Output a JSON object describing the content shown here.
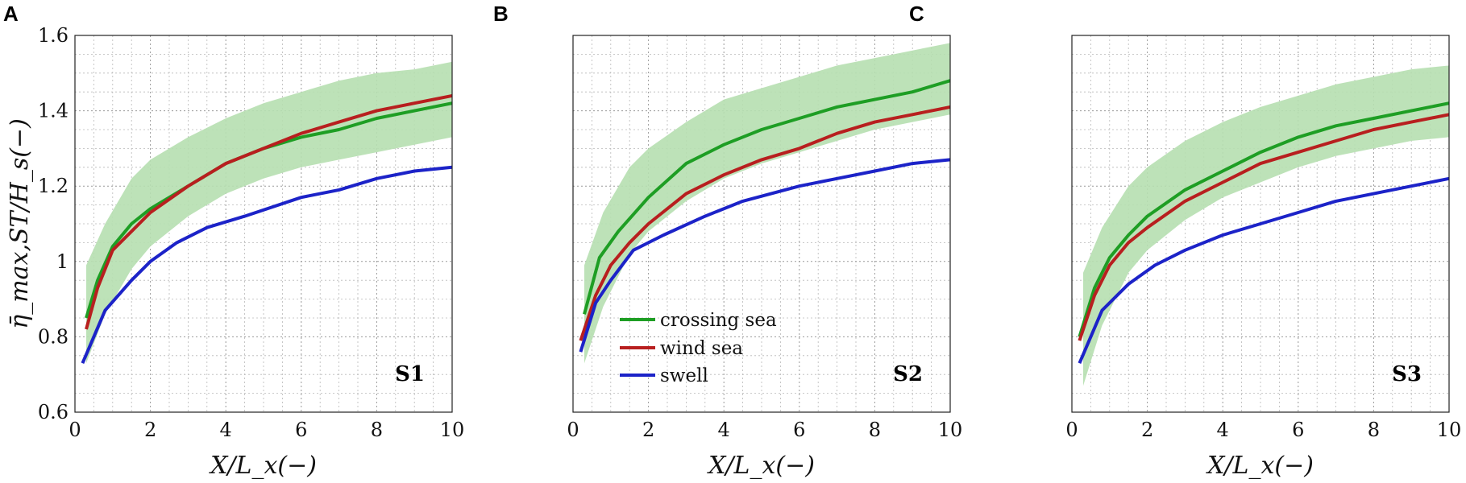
{
  "chart_data": [
    {
      "type": "line",
      "panel_letter": "A",
      "tag": "S1",
      "xlabel": "X/L_x(−)",
      "ylabel": "η̄_max,ST/H_s(−)",
      "xlim": [
        0,
        10
      ],
      "ylim": [
        0.6,
        1.6
      ],
      "xticks": [
        "0",
        "2",
        "4",
        "6",
        "8",
        "10"
      ],
      "yticks": [
        "0.6",
        "0.8",
        "1",
        "1.2",
        "1.4",
        "1.6"
      ],
      "band": {
        "name": "crossing sea range",
        "color": "#b6dfb0",
        "x": [
          0.3,
          0.8,
          1.5,
          2.0,
          3.0,
          4.0,
          5.0,
          6.0,
          7.0,
          8.0,
          9.0,
          10.0
        ],
        "lower": [
          0.73,
          0.86,
          0.98,
          1.04,
          1.12,
          1.18,
          1.22,
          1.25,
          1.27,
          1.29,
          1.31,
          1.33
        ],
        "upper": [
          0.99,
          1.1,
          1.22,
          1.27,
          1.33,
          1.38,
          1.42,
          1.45,
          1.48,
          1.5,
          1.51,
          1.53
        ]
      },
      "series": [
        {
          "name": "crossing sea",
          "color": "#1e9e24",
          "x": [
            0.3,
            0.6,
            1.0,
            1.5,
            2.0,
            3.0,
            4.0,
            5.0,
            6.0,
            7.0,
            8.0,
            9.0,
            10.0
          ],
          "values": [
            0.85,
            0.95,
            1.04,
            1.1,
            1.14,
            1.2,
            1.26,
            1.3,
            1.33,
            1.35,
            1.38,
            1.4,
            1.42
          ]
        },
        {
          "name": "wind sea",
          "color": "#b81f1f",
          "x": [
            0.3,
            0.6,
            1.0,
            1.5,
            2.0,
            3.0,
            4.0,
            5.0,
            6.0,
            7.0,
            8.0,
            9.0,
            10.0
          ],
          "values": [
            0.82,
            0.93,
            1.03,
            1.08,
            1.13,
            1.2,
            1.26,
            1.3,
            1.34,
            1.37,
            1.4,
            1.42,
            1.44
          ]
        },
        {
          "name": "swell",
          "color": "#1c23c8",
          "x": [
            0.2,
            0.8,
            1.5,
            2.0,
            2.7,
            3.5,
            4.5,
            6.0,
            7.0,
            8.0,
            9.0,
            10.0
          ],
          "values": [
            0.73,
            0.87,
            0.95,
            1.0,
            1.05,
            1.09,
            1.12,
            1.17,
            1.19,
            1.22,
            1.24,
            1.25
          ]
        }
      ]
    },
    {
      "type": "line",
      "panel_letter": "B",
      "tag": "S2",
      "xlabel": "X/L_x(−)",
      "xlim": [
        0,
        10
      ],
      "ylim": [
        0.6,
        1.6
      ],
      "xticks": [
        "0",
        "2",
        "4",
        "6",
        "8",
        "10"
      ],
      "legend": {
        "position": "center-left",
        "entries": [
          "crossing sea",
          "wind sea",
          "swell"
        ]
      },
      "band": {
        "name": "crossing sea range",
        "color": "#b6dfb0",
        "x": [
          0.3,
          0.8,
          1.5,
          2.0,
          3.0,
          4.0,
          5.0,
          6.0,
          7.0,
          8.0,
          9.0,
          10.0
        ],
        "lower": [
          0.73,
          0.88,
          1.02,
          1.08,
          1.16,
          1.22,
          1.26,
          1.29,
          1.32,
          1.35,
          1.37,
          1.39
        ],
        "upper": [
          0.99,
          1.13,
          1.25,
          1.3,
          1.37,
          1.43,
          1.46,
          1.49,
          1.52,
          1.54,
          1.56,
          1.58
        ]
      },
      "series": [
        {
          "name": "crossing sea",
          "color": "#1e9e24",
          "x": [
            0.3,
            0.7,
            1.2,
            2.0,
            3.0,
            4.0,
            5.0,
            6.0,
            7.0,
            8.0,
            9.0,
            10.0
          ],
          "values": [
            0.86,
            1.01,
            1.08,
            1.17,
            1.26,
            1.31,
            1.35,
            1.38,
            1.41,
            1.43,
            1.45,
            1.48
          ]
        },
        {
          "name": "wind sea",
          "color": "#b81f1f",
          "x": [
            0.2,
            0.6,
            1.0,
            1.5,
            2.0,
            3.0,
            4.0,
            5.0,
            6.0,
            7.0,
            8.0,
            9.0,
            10.0
          ],
          "values": [
            0.79,
            0.91,
            0.99,
            1.05,
            1.1,
            1.18,
            1.23,
            1.27,
            1.3,
            1.34,
            1.37,
            1.39,
            1.41
          ]
        },
        {
          "name": "swell",
          "color": "#1c23c8",
          "x": [
            0.2,
            0.6,
            1.0,
            1.6,
            2.4,
            3.5,
            4.5,
            6.0,
            7.0,
            8.0,
            9.0,
            10.0
          ],
          "values": [
            0.76,
            0.89,
            0.95,
            1.03,
            1.07,
            1.12,
            1.16,
            1.2,
            1.22,
            1.24,
            1.26,
            1.27
          ]
        }
      ]
    },
    {
      "type": "line",
      "panel_letter": "C",
      "tag": "S3",
      "xlabel": "X/L_x(−)",
      "xlim": [
        0,
        10
      ],
      "ylim": [
        0.6,
        1.6
      ],
      "xticks": [
        "0",
        "2",
        "4",
        "6",
        "8",
        "10"
      ],
      "band": {
        "name": "crossing sea range",
        "color": "#b6dfb0",
        "x": [
          0.3,
          0.8,
          1.5,
          2.0,
          3.0,
          4.0,
          5.0,
          6.0,
          7.0,
          8.0,
          9.0,
          10.0
        ],
        "lower": [
          0.67,
          0.83,
          0.97,
          1.03,
          1.11,
          1.17,
          1.21,
          1.25,
          1.28,
          1.3,
          1.32,
          1.33
        ],
        "upper": [
          0.97,
          1.09,
          1.2,
          1.25,
          1.32,
          1.37,
          1.41,
          1.44,
          1.47,
          1.49,
          1.51,
          1.52
        ]
      },
      "series": [
        {
          "name": "crossing sea",
          "color": "#1e9e24",
          "x": [
            0.2,
            0.6,
            1.0,
            1.5,
            2.0,
            3.0,
            4.0,
            5.0,
            6.0,
            7.0,
            8.0,
            9.0,
            10.0
          ],
          "values": [
            0.8,
            0.93,
            1.01,
            1.07,
            1.12,
            1.19,
            1.24,
            1.29,
            1.33,
            1.36,
            1.38,
            1.4,
            1.42
          ]
        },
        {
          "name": "wind sea",
          "color": "#b81f1f",
          "x": [
            0.2,
            0.6,
            1.0,
            1.5,
            2.0,
            3.0,
            4.0,
            5.0,
            6.0,
            7.0,
            8.0,
            9.0,
            10.0
          ],
          "values": [
            0.79,
            0.91,
            0.99,
            1.05,
            1.09,
            1.16,
            1.21,
            1.26,
            1.29,
            1.32,
            1.35,
            1.37,
            1.39
          ]
        },
        {
          "name": "swell",
          "color": "#1c23c8",
          "x": [
            0.2,
            0.8,
            1.5,
            2.2,
            3.0,
            4.0,
            5.0,
            6.0,
            7.0,
            8.0,
            9.0,
            10.0
          ],
          "values": [
            0.73,
            0.87,
            0.94,
            0.99,
            1.03,
            1.07,
            1.1,
            1.13,
            1.16,
            1.18,
            1.2,
            1.22
          ]
        }
      ]
    }
  ]
}
